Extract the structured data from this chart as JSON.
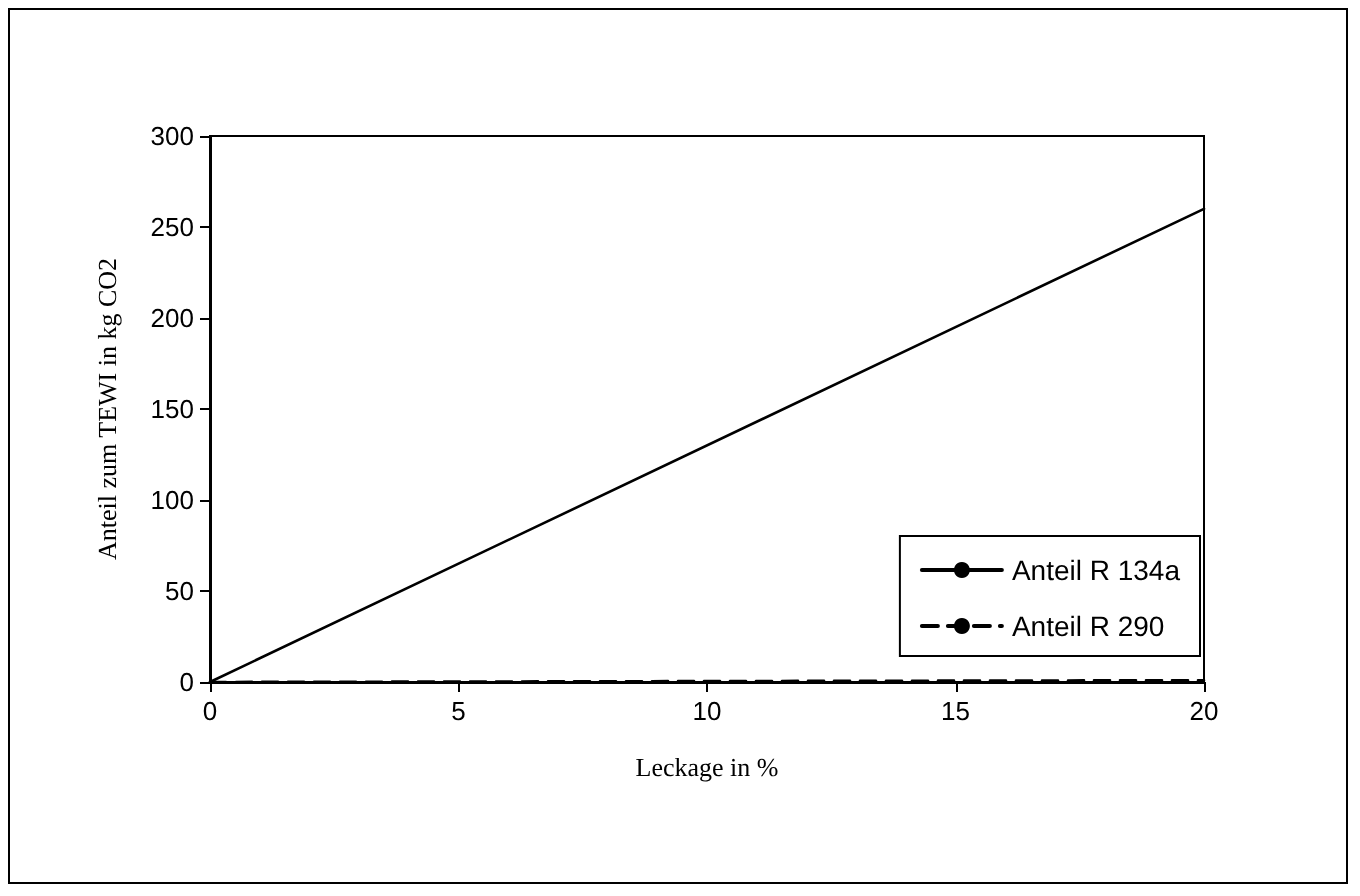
{
  "chart_data": {
    "type": "line",
    "xlabel": "Leckage in %",
    "ylabel": "Anteil zum TEWI in kg CO2",
    "x": [
      0,
      20
    ],
    "series": [
      {
        "name": "Anteil R 134a",
        "color": "#000000",
        "values": [
          0,
          260
        ],
        "line_style": "solid"
      },
      {
        "name": "Anteil R 290",
        "color": "#000000",
        "values": [
          0,
          1
        ],
        "line_style": "dashed"
      }
    ],
    "xlim": [
      0,
      20
    ],
    "xticks": [
      0,
      5,
      10,
      15,
      20
    ],
    "ylim": [
      0,
      300
    ],
    "yticks": [
      0,
      50,
      100,
      150,
      200,
      250,
      300
    ],
    "grid": false,
    "legend": "bottom right",
    "marker": "none"
  }
}
